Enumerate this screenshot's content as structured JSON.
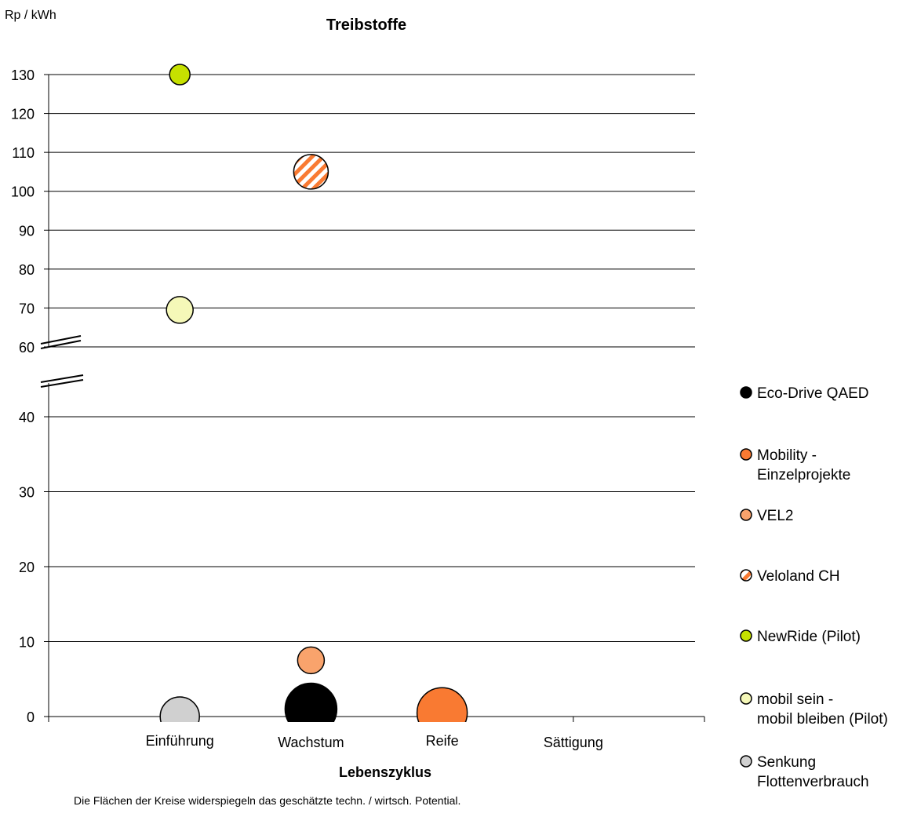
{
  "chart_data": {
    "type": "scatter",
    "title": "Treibstoffe",
    "ylabel": "Rp / kWh",
    "xlabel": "Lebenszyklus",
    "categories": [
      "Einführung",
      "Wachstum",
      "Reife",
      "Sättigung"
    ],
    "y_upper_ticks": [
      60,
      70,
      80,
      90,
      100,
      110,
      120,
      130
    ],
    "y_lower_ticks": [
      0,
      10,
      20,
      30,
      40
    ],
    "ylim_lower": [
      0,
      45
    ],
    "ylim_upper": [
      60,
      130
    ],
    "axis_break": true,
    "grid": true,
    "legend_position": "right",
    "footnote": "Die Flächen der Kreise widerspiegeln das geschätzte techn. / wirtsch. Potential.",
    "series": [
      {
        "name": "Eco-Drive QAED",
        "color": "#000000",
        "pattern": "solid",
        "points": [
          {
            "x": "Wachstum",
            "y": 1,
            "size": 33
          }
        ]
      },
      {
        "name": "Mobility - Einzelprojekte",
        "color": "#f97a32",
        "pattern": "solid",
        "points": [
          {
            "x": "Reife",
            "y": 0.5,
            "size": 32
          }
        ]
      },
      {
        "name": "VEL2",
        "color": "#f9a36c",
        "pattern": "solid",
        "points": [
          {
            "x": "Wachstum",
            "y": 7.5,
            "size": 17
          }
        ]
      },
      {
        "name": "Veloland CH",
        "color": "#f97a32",
        "pattern": "stripes",
        "points": [
          {
            "x": "Wachstum",
            "y": 105,
            "size": 22
          }
        ]
      },
      {
        "name": "NewRide (Pilot)",
        "color": "#c6e000",
        "pattern": "solid",
        "points": [
          {
            "x": "Einführung",
            "y": 130,
            "size": 13
          }
        ]
      },
      {
        "name": "mobil sein - mobil bleiben (Pilot)",
        "color": "#f5f8b8",
        "pattern": "solid",
        "points": [
          {
            "x": "Einführung",
            "y": 69.5,
            "size": 17
          }
        ]
      },
      {
        "name": "Senkung Flottenverbrauch",
        "color": "#d0d0d0",
        "pattern": "solid",
        "points": [
          {
            "x": "Einführung",
            "y": 0,
            "size": 25
          }
        ]
      }
    ]
  }
}
